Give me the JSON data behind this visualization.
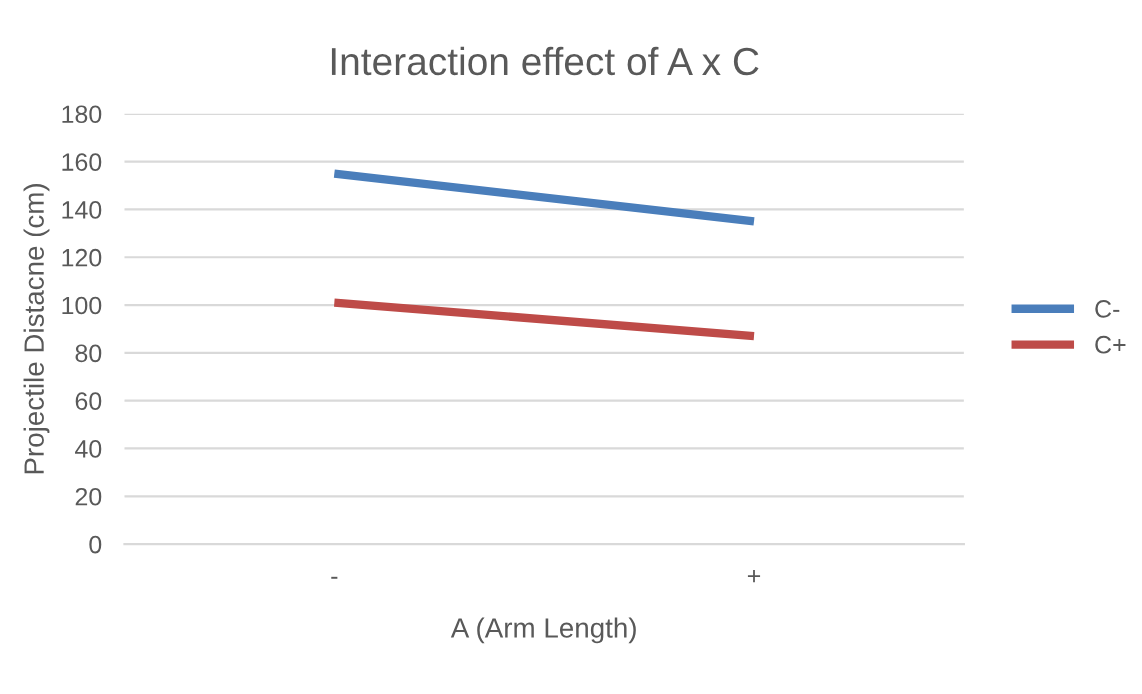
{
  "chart_data": {
    "type": "line",
    "title": "Interaction effect of A x C",
    "xlabel": "A (Arm Length)",
    "ylabel": "Projectile Distacne (cm)",
    "categories": [
      "-",
      "+"
    ],
    "series": [
      {
        "name": "C-",
        "color": "#4a7ebb",
        "values": [
          155,
          135
        ]
      },
      {
        "name": "C+",
        "color": "#be4b48",
        "values": [
          101,
          87
        ]
      }
    ],
    "ylim": [
      0,
      180
    ],
    "yticks": [
      0,
      20,
      40,
      60,
      80,
      100,
      120,
      140,
      160,
      180
    ],
    "grid": "y",
    "legend": "right",
    "marker": "none",
    "line_style": "solid"
  }
}
